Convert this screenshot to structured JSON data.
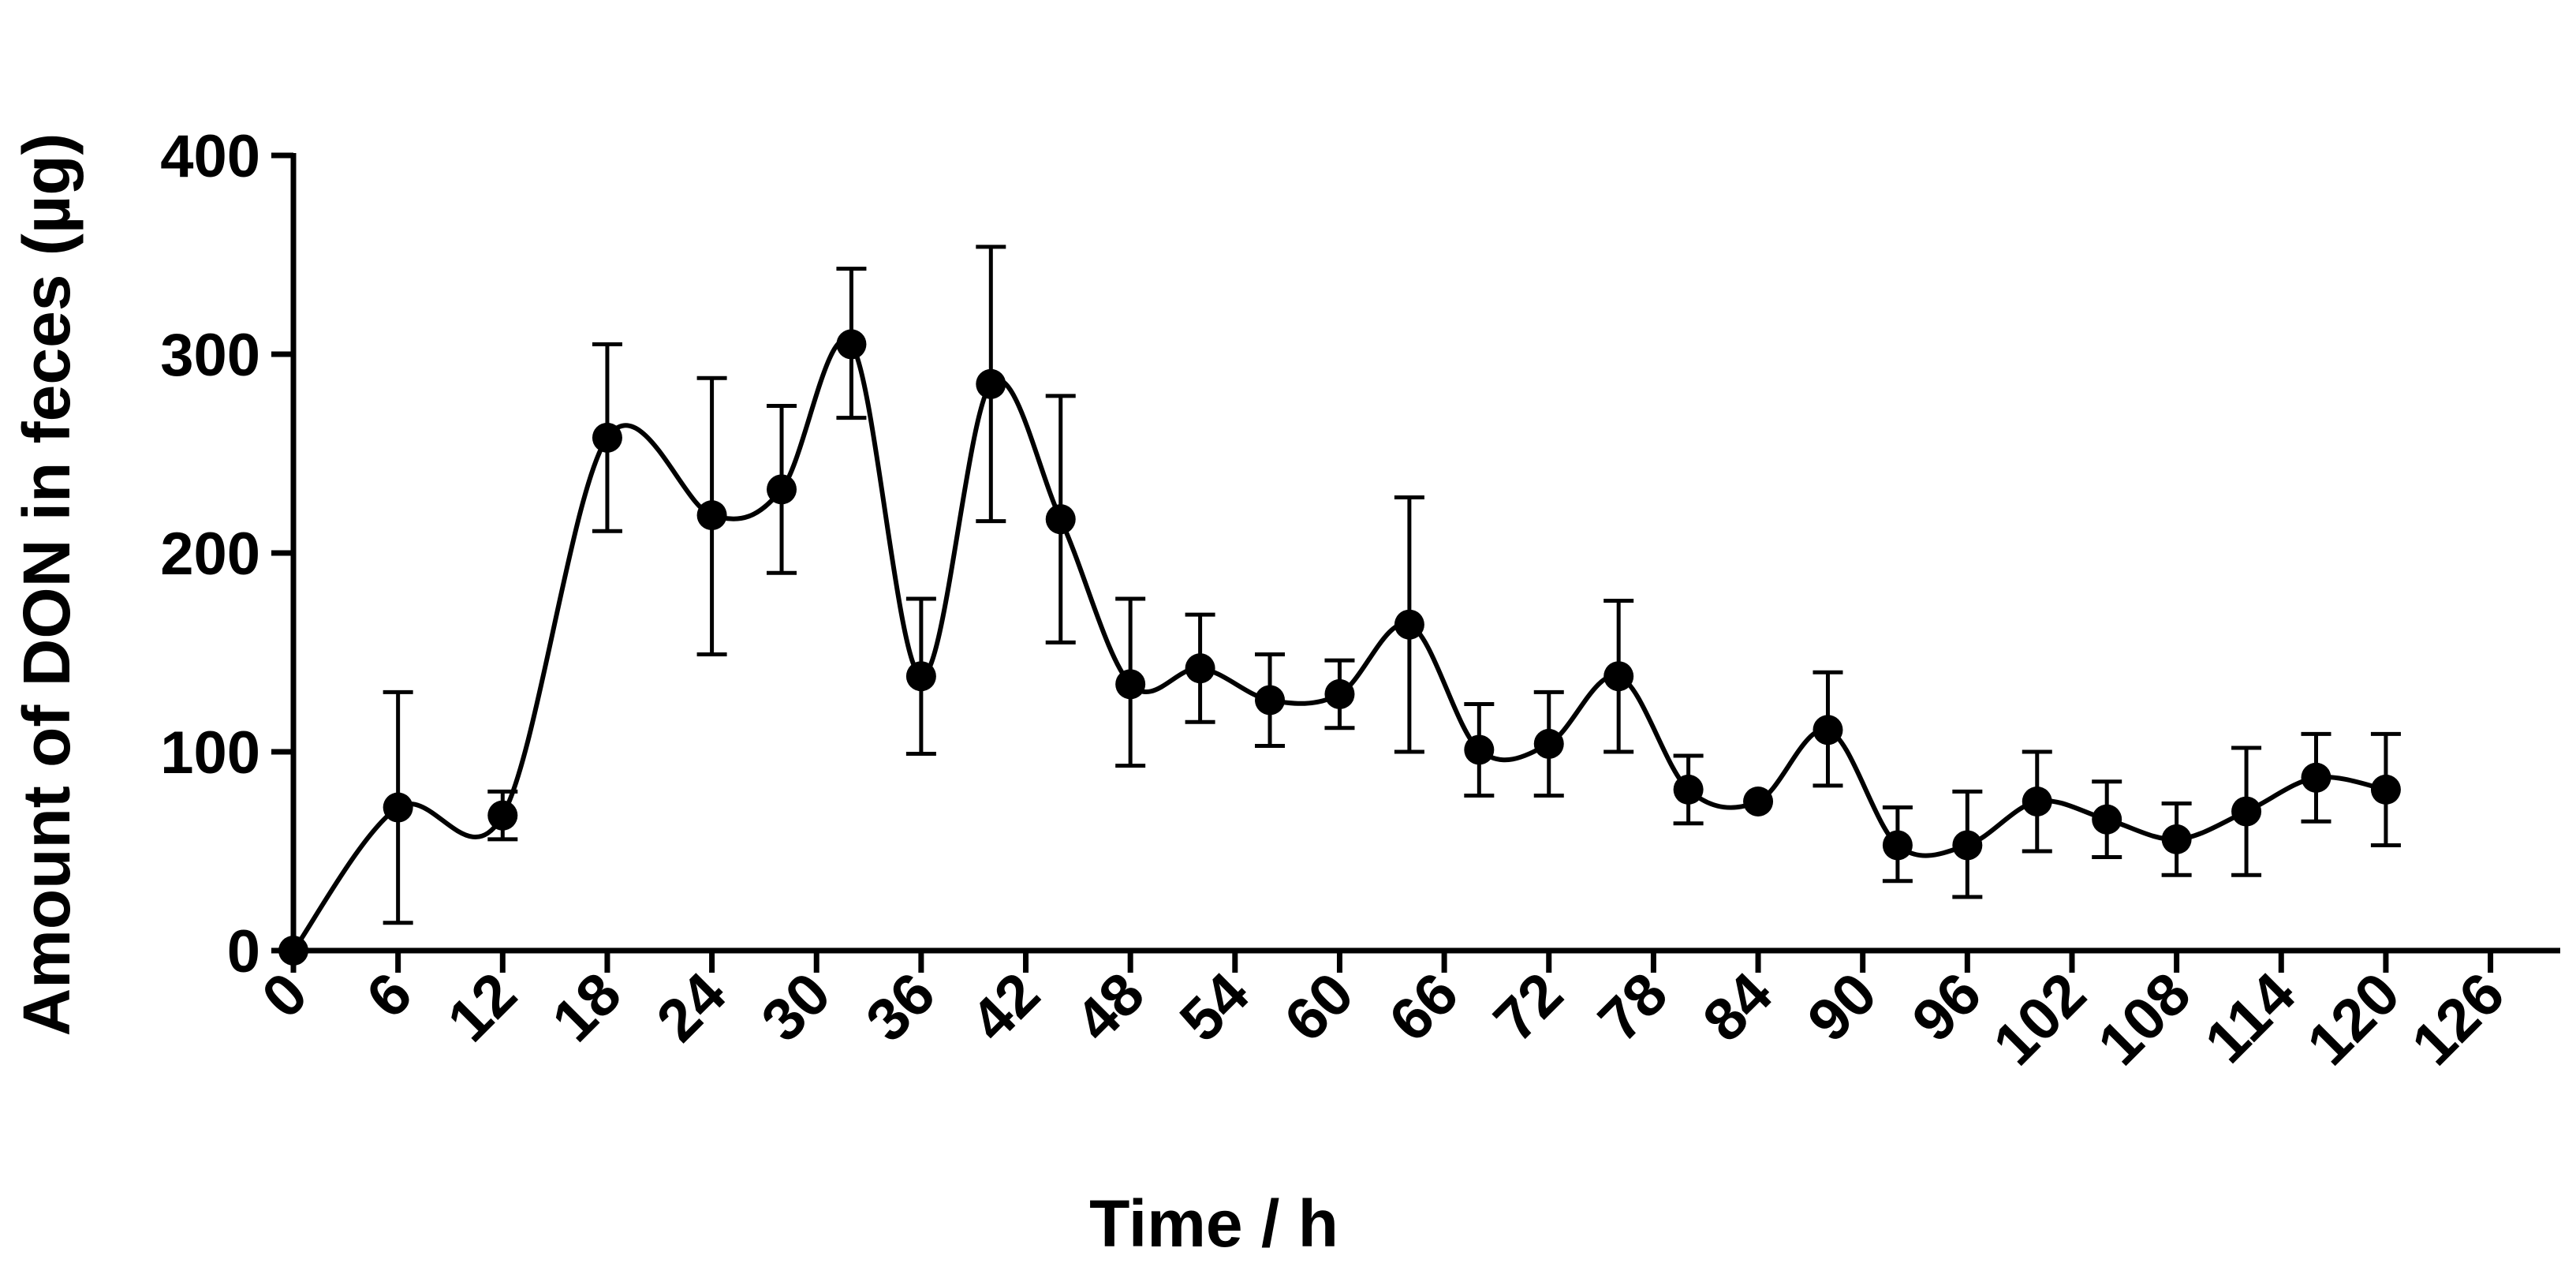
{
  "chart_data": {
    "type": "line",
    "title": "",
    "xlabel": "Time / h",
    "ylabel": "Amount of DON in feces (µg)",
    "xlim": [
      0,
      130
    ],
    "ylim": [
      0,
      400
    ],
    "x_ticks": [
      0,
      6,
      12,
      18,
      24,
      30,
      36,
      42,
      48,
      54,
      60,
      66,
      72,
      78,
      84,
      90,
      96,
      102,
      108,
      114,
      120,
      126
    ],
    "x_tick_labels": [
      "0",
      "6",
      "12",
      "18",
      "24",
      "30",
      "36",
      "42",
      "48",
      "54",
      "60",
      "66",
      "72",
      "78",
      "84",
      "90",
      "96",
      "102",
      "108",
      "114",
      "120",
      "126"
    ],
    "y_ticks": [
      0,
      100,
      200,
      300,
      400
    ],
    "y_tick_labels": [
      "0",
      "100",
      "200",
      "300",
      "400"
    ],
    "grid": false,
    "legend": "none",
    "series": [
      {
        "name": "DON in feces",
        "color": "#000000",
        "x": [
          0,
          6,
          12,
          18,
          24,
          28,
          32,
          36,
          40,
          44,
          48,
          52,
          56,
          60,
          64,
          68,
          72,
          76,
          80,
          84,
          88,
          92,
          96,
          100,
          104,
          108,
          112,
          116,
          120
        ],
        "y": [
          0,
          72,
          68,
          258,
          219,
          232,
          305,
          138,
          285,
          217,
          134,
          142,
          126,
          129,
          164,
          101,
          104,
          138,
          81,
          75,
          111,
          53,
          53,
          75,
          66,
          56,
          70,
          87,
          81
        ],
        "error_upper": [
          0,
          130,
          80,
          305,
          288,
          274,
          343,
          177,
          354,
          279,
          177,
          169,
          149,
          146,
          228,
          124,
          130,
          176,
          98,
          75,
          140,
          72,
          80,
          100,
          85,
          74,
          102,
          109,
          109
        ],
        "error_lower": [
          0,
          14,
          56,
          211,
          149,
          190,
          268,
          99,
          216,
          155,
          93,
          115,
          103,
          112,
          100,
          78,
          78,
          100,
          64,
          75,
          83,
          35,
          27,
          50,
          47,
          38,
          38,
          65,
          53
        ]
      }
    ]
  }
}
